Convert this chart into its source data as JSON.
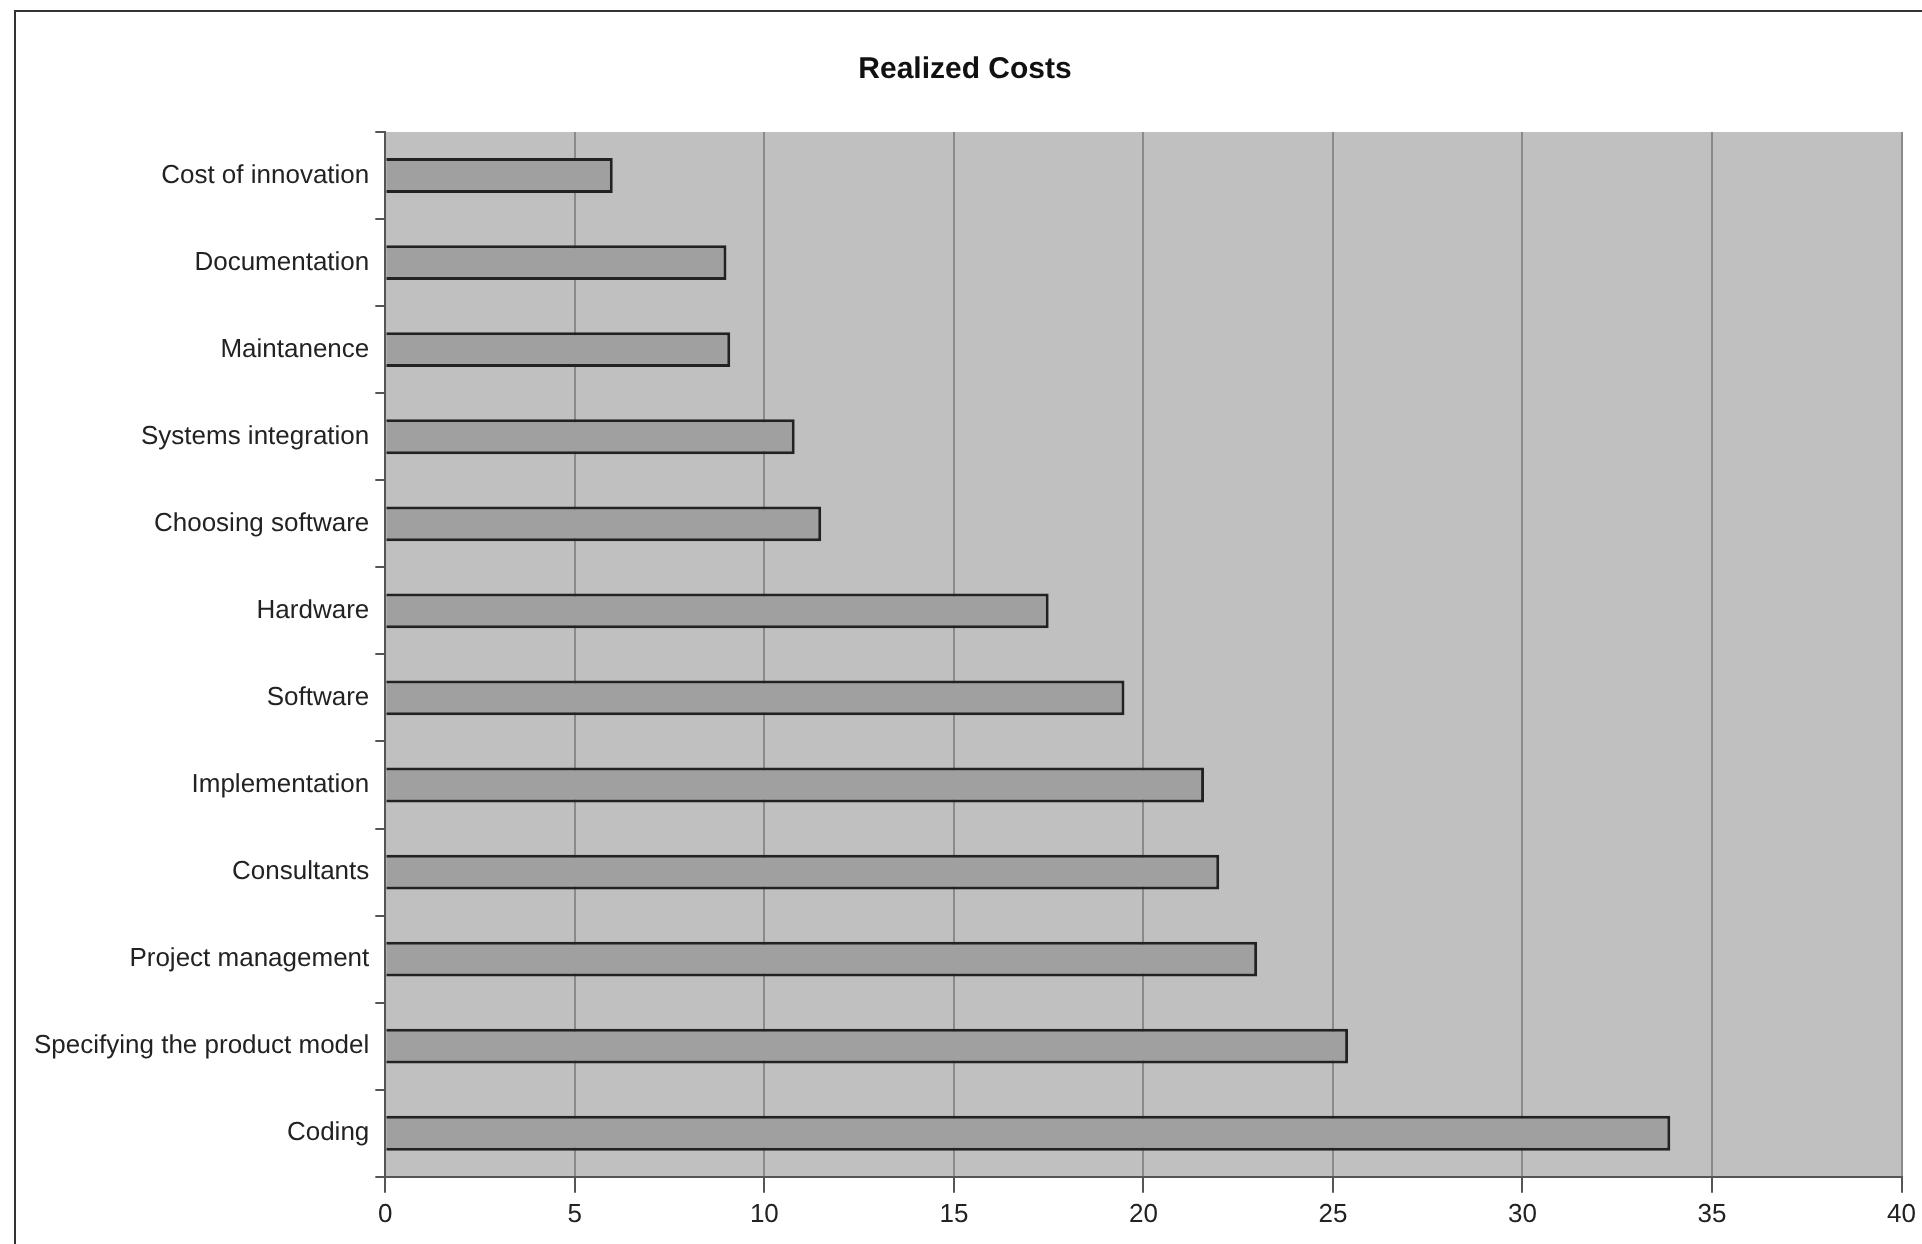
{
  "chart_data": {
    "type": "bar",
    "orientation": "horizontal",
    "title": "Realized Costs",
    "categories": [
      "Cost of innovation",
      "Documentation",
      "Maintanence",
      "Systems integration",
      "Choosing software",
      "Hardware",
      "Software",
      "Implementation",
      "Consultants",
      "Project management",
      "Specifying the product model",
      "Coding"
    ],
    "values": [
      6,
      9,
      9.1,
      10.8,
      11.5,
      17.5,
      19.5,
      21.6,
      22,
      23,
      25.4,
      33.9
    ],
    "color": "#a0a0a0",
    "xlim": [
      0,
      40
    ],
    "xticks": [
      0,
      5,
      10,
      15,
      20,
      25,
      30,
      35,
      40
    ],
    "grid": "x",
    "legend": false
  }
}
